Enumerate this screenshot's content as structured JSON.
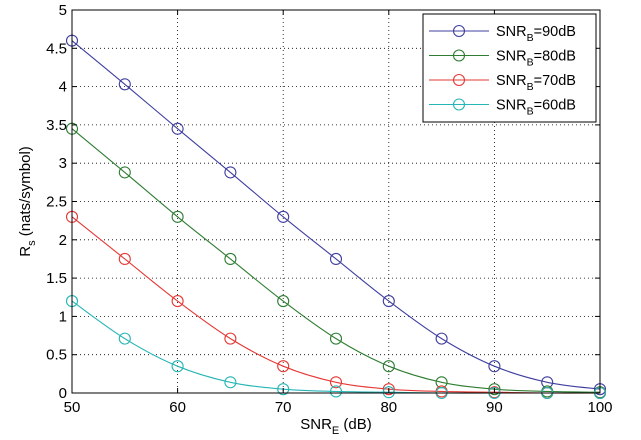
{
  "chart_data": {
    "type": "line",
    "xlabel": {
      "main": "SNR",
      "sub": "E",
      "suffix": " (dB)"
    },
    "ylabel": {
      "main": "R",
      "sub": "s",
      "suffix": " (nats/symbol)"
    },
    "xlim": [
      50,
      100
    ],
    "ylim": [
      0,
      5
    ],
    "xticks": [
      50,
      60,
      70,
      80,
      90,
      100
    ],
    "yticks": [
      0,
      0.5,
      1,
      1.5,
      2,
      2.5,
      3,
      3.5,
      4,
      4.5,
      5
    ],
    "xtick_labels": [
      "50",
      "60",
      "70",
      "80",
      "90",
      "100"
    ],
    "ytick_labels": [
      "0",
      "0.5",
      "1",
      "1.5",
      "2",
      "2.5",
      "3",
      "3.5",
      "4",
      "4.5",
      "5"
    ],
    "grid": true,
    "grid_style": "dotted",
    "marker": "circle",
    "legend_position": "top-right",
    "x": [
      50,
      55,
      60,
      65,
      70,
      75,
      80,
      85,
      90,
      95,
      100
    ],
    "series": [
      {
        "legend": {
          "main": "SNR",
          "sub": "B",
          "suffix": "=90dB"
        },
        "color": "#3f3fa0",
        "values": [
          4.6,
          4.03,
          3.45,
          2.88,
          2.3,
          1.75,
          1.2,
          0.71,
          0.35,
          0.14,
          0.05
        ]
      },
      {
        "legend": {
          "main": "SNR",
          "sub": "B",
          "suffix": "=80dB"
        },
        "color": "#2e7d32",
        "values": [
          3.45,
          2.88,
          2.3,
          1.75,
          1.2,
          0.71,
          0.35,
          0.14,
          0.05,
          0.02,
          0.01
        ]
      },
      {
        "legend": {
          "main": "SNR",
          "sub": "B",
          "suffix": "=70dB"
        },
        "color": "#e53935",
        "values": [
          2.3,
          1.75,
          1.2,
          0.71,
          0.35,
          0.14,
          0.05,
          0.02,
          0.01,
          0.0,
          0.0
        ]
      },
      {
        "legend": {
          "main": "SNR",
          "sub": "B",
          "suffix": "=60dB"
        },
        "color": "#26b5b5",
        "values": [
          1.2,
          0.71,
          0.35,
          0.14,
          0.05,
          0.02,
          0.01,
          0.0,
          0.0,
          0.0,
          0.0
        ]
      }
    ]
  }
}
